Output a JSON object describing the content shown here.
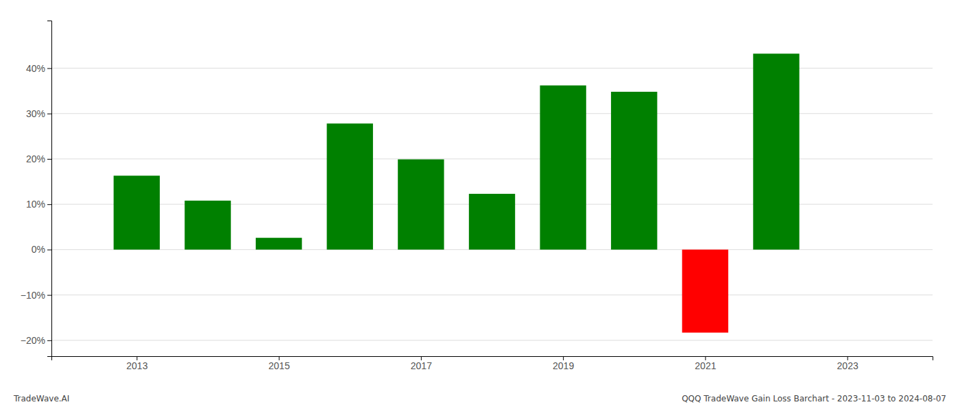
{
  "chart_data": {
    "type": "bar",
    "x": [
      2013,
      2014,
      2015,
      2016,
      2017,
      2018,
      2019,
      2020,
      2021,
      2022
    ],
    "values": [
      0.163,
      0.108,
      0.026,
      0.278,
      0.199,
      0.123,
      0.362,
      0.348,
      -0.183,
      0.432
    ],
    "colors": [
      "#008000",
      "#008000",
      "#008000",
      "#008000",
      "#008000",
      "#008000",
      "#008000",
      "#008000",
      "#ff0000",
      "#008000"
    ],
    "xlim": [
      2011.8,
      2024.2
    ],
    "xticks": [
      2013,
      2015,
      2017,
      2019,
      2021,
      2023
    ],
    "ylim": [
      -0.235,
      0.505
    ],
    "yticks": [
      {
        "value": -0.2,
        "label": "−20%"
      },
      {
        "value": -0.1,
        "label": "−10%"
      },
      {
        "value": 0.0,
        "label": "0%"
      },
      {
        "value": 0.1,
        "label": "10%"
      },
      {
        "value": 0.2,
        "label": "20%"
      },
      {
        "value": 0.3,
        "label": "30%"
      },
      {
        "value": 0.4,
        "label": "40%"
      }
    ],
    "grid": true,
    "annotations": [
      "TradeWave.AI",
      "QQQ TradeWave Gain Loss Barchart - 2023-11-03 to 2024-08-07"
    ]
  }
}
